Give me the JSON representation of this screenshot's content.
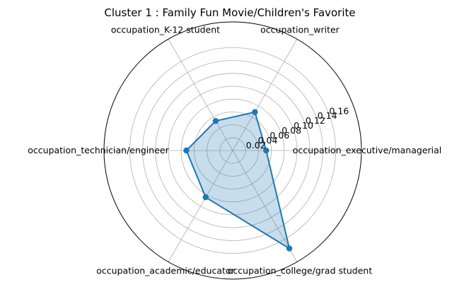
{
  "chart_data": {
    "type": "radar",
    "title": "Cluster 1 : Family Fun Movie/Children's Favorite",
    "categories": [
      "occupation_executive/managerial",
      "occupation_writer",
      "occupation_K-12 student",
      "occupation_technician/engineer",
      "occupation_academic/educator",
      "occupation_college/grad student"
    ],
    "series": [
      {
        "values": [
          0.052,
          0.069,
          0.053,
          0.072,
          0.084,
          0.176
        ]
      }
    ],
    "r_ticks": [
      0.02,
      0.04,
      0.06,
      0.08,
      0.1,
      0.12,
      0.14,
      0.16
    ],
    "r_tick_labels": [
      "0.02",
      "0.04",
      "0.06",
      "0.08",
      "0.10",
      "0.12",
      "0.14",
      "0.16"
    ],
    "rlim": [
      0,
      0.2
    ],
    "grid": true,
    "colors": {
      "line": "#1f77b4",
      "fill": "#1f77b4",
      "grid": "#b0b0b0",
      "spine": "#000000"
    }
  }
}
